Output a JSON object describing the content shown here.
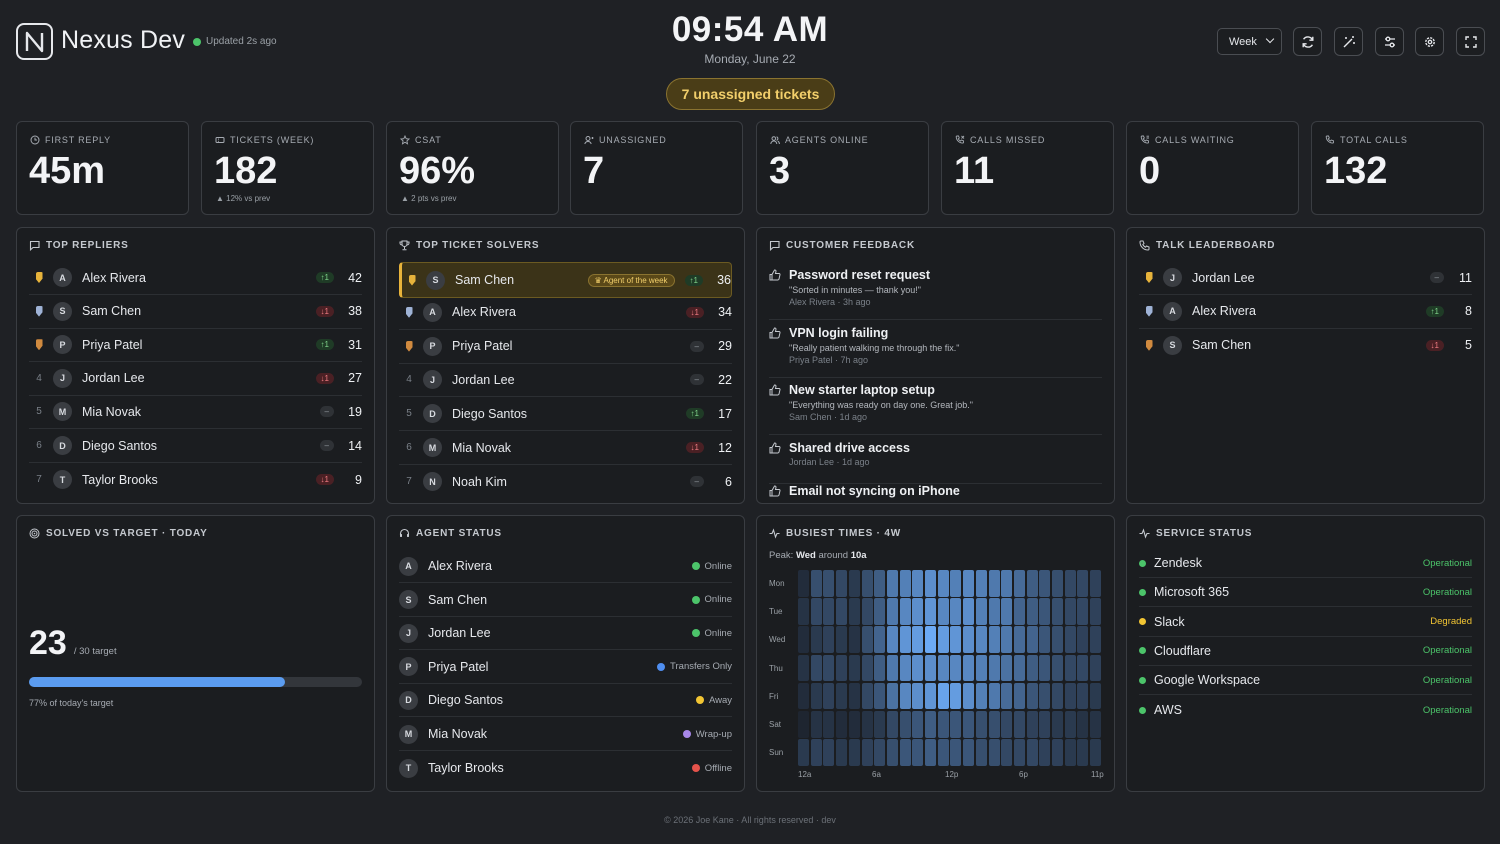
{
  "header": {
    "brand": "Nexus Dev",
    "updated": "Updated 2s ago",
    "time": "09:54 AM",
    "date": "Monday, June 22",
    "unassigned_pill": "7 unassigned tickets",
    "range_select": "Week",
    "icons": [
      "refresh-icon",
      "magic-wand-icon",
      "sliders-icon",
      "gear-icon",
      "fullscreen-icon"
    ]
  },
  "kpis": [
    {
      "label": "FIRST REPLY",
      "value": "45m",
      "sub": "",
      "icon": "clock-icon"
    },
    {
      "label": "TICKETS (WEEK)",
      "value": "182",
      "sub": "▲ 12% vs prev",
      "icon": "ticket-icon"
    },
    {
      "label": "CSAT",
      "value": "96%",
      "sub": "▲ 2 pts vs prev",
      "icon": "star-icon"
    },
    {
      "label": "UNASSIGNED",
      "value": "7",
      "sub": "",
      "icon": "user-icon"
    },
    {
      "label": "AGENTS ONLINE",
      "value": "3",
      "sub": "",
      "icon": "users-icon"
    },
    {
      "label": "CALLS MISSED",
      "value": "11",
      "sub": "",
      "icon": "phone-missed-icon"
    },
    {
      "label": "CALLS WAITING",
      "value": "0",
      "sub": "",
      "icon": "phone-wait-icon"
    },
    {
      "label": "TOTAL CALLS",
      "value": "132",
      "sub": "",
      "icon": "phone-icon"
    }
  ],
  "top_repliers": {
    "title": "TOP REPLIERS",
    "rows": [
      {
        "rank": "1",
        "initial": "A",
        "name": "Alex Rivera",
        "trend": "↑1",
        "dir": "up",
        "count": "42"
      },
      {
        "rank": "2",
        "initial": "S",
        "name": "Sam Chen",
        "trend": "↓1",
        "dir": "down",
        "count": "38"
      },
      {
        "rank": "3",
        "initial": "P",
        "name": "Priya Patel",
        "trend": "↑1",
        "dir": "up",
        "count": "31"
      },
      {
        "rank": "4",
        "initial": "J",
        "name": "Jordan Lee",
        "trend": "↓1",
        "dir": "down",
        "count": "27"
      },
      {
        "rank": "5",
        "initial": "M",
        "name": "Mia Novak",
        "trend": "–",
        "dir": "flat",
        "count": "19"
      },
      {
        "rank": "6",
        "initial": "D",
        "name": "Diego Santos",
        "trend": "–",
        "dir": "flat",
        "count": "14"
      },
      {
        "rank": "7",
        "initial": "T",
        "name": "Taylor Brooks",
        "trend": "↓1",
        "dir": "down",
        "count": "9"
      }
    ]
  },
  "top_solvers": {
    "title": "TOP TICKET SOLVERS",
    "badge": "Agent of the week",
    "rows": [
      {
        "rank": "1",
        "initial": "S",
        "name": "Sam Chen",
        "trend": "↑1",
        "dir": "up",
        "count": "36"
      },
      {
        "rank": "2",
        "initial": "A",
        "name": "Alex Rivera",
        "trend": "↓1",
        "dir": "down",
        "count": "34"
      },
      {
        "rank": "3",
        "initial": "P",
        "name": "Priya Patel",
        "trend": "–",
        "dir": "flat",
        "count": "29"
      },
      {
        "rank": "4",
        "initial": "J",
        "name": "Jordan Lee",
        "trend": "–",
        "dir": "flat",
        "count": "22"
      },
      {
        "rank": "5",
        "initial": "D",
        "name": "Diego Santos",
        "trend": "↑1",
        "dir": "up",
        "count": "17"
      },
      {
        "rank": "6",
        "initial": "M",
        "name": "Mia Novak",
        "trend": "↓1",
        "dir": "down",
        "count": "12"
      },
      {
        "rank": "7",
        "initial": "N",
        "name": "Noah Kim",
        "trend": "–",
        "dir": "flat",
        "count": "6"
      }
    ]
  },
  "feedback": {
    "title": "CUSTOMER FEEDBACK",
    "items": [
      {
        "title": "Password reset request",
        "quote": "\"Sorted in minutes — thank you!\"",
        "meta": "Alex Rivera · 3h ago"
      },
      {
        "title": "VPN login failing",
        "quote": "\"Really patient walking me through the fix.\"",
        "meta": "Priya Patel · 7h ago"
      },
      {
        "title": "New starter laptop setup",
        "quote": "\"Everything was ready on day one. Great job.\"",
        "meta": "Sam Chen · 1d ago"
      },
      {
        "title": "Shared drive access",
        "quote": "",
        "meta": "Jordan Lee · 1d ago"
      },
      {
        "title": "Email not syncing on iPhone",
        "quote": "",
        "meta": ""
      }
    ]
  },
  "talk": {
    "title": "TALK LEADERBOARD",
    "rows": [
      {
        "initial": "J",
        "name": "Jordan Lee",
        "trend": "–",
        "dir": "flat",
        "count": "11"
      },
      {
        "initial": "A",
        "name": "Alex Rivera",
        "trend": "↑1",
        "dir": "up",
        "count": "8"
      },
      {
        "initial": "S",
        "name": "Sam Chen",
        "trend": "↓1",
        "dir": "down",
        "count": "5"
      }
    ]
  },
  "solved": {
    "title": "SOLVED VS TARGET · TODAY",
    "value": "23",
    "target": "/ 30 target",
    "fraction": 0.77,
    "caption": "77% of today's target"
  },
  "agent_status": {
    "title": "AGENT STATUS",
    "rows": [
      {
        "initial": "A",
        "name": "Alex Rivera",
        "status": "Online",
        "color": "#4cc46a"
      },
      {
        "initial": "S",
        "name": "Sam Chen",
        "status": "Online",
        "color": "#4cc46a"
      },
      {
        "initial": "J",
        "name": "Jordan Lee",
        "status": "Online",
        "color": "#4cc46a"
      },
      {
        "initial": "P",
        "name": "Priya Patel",
        "status": "Transfers Only",
        "color": "#4f8ef0"
      },
      {
        "initial": "D",
        "name": "Diego Santos",
        "status": "Away",
        "color": "#f2c533"
      },
      {
        "initial": "M",
        "name": "Mia Novak",
        "status": "Wrap-up",
        "color": "#a787e8"
      },
      {
        "initial": "T",
        "name": "Taylor Brooks",
        "status": "Offline",
        "color": "#e5534b"
      }
    ]
  },
  "busiest": {
    "title": "BUSIEST TIMES · 4W",
    "peak_label": "Peak:",
    "peak_day": "Wed",
    "peak_mid": "around",
    "peak_time": "10a",
    "days": [
      "Mon",
      "Tue",
      "Wed",
      "Thu",
      "Fri",
      "Sat",
      "Sun"
    ],
    "x_labels": [
      "12a",
      "6a",
      "12p",
      "6p",
      "11p"
    ],
    "chart_data": {
      "type": "heatmap",
      "rows": [
        "Mon",
        "Tue",
        "Wed",
        "Thu",
        "Fri",
        "Sat",
        "Sun"
      ],
      "columns": 24,
      "values": [
        [
          0.1,
          0.35,
          0.35,
          0.3,
          0.2,
          0.35,
          0.45,
          0.65,
          0.7,
          0.75,
          0.8,
          0.75,
          0.7,
          0.75,
          0.7,
          0.65,
          0.65,
          0.55,
          0.45,
          0.4,
          0.35,
          0.3,
          0.3,
          0.25
        ],
        [
          0.15,
          0.3,
          0.3,
          0.3,
          0.2,
          0.3,
          0.45,
          0.65,
          0.75,
          0.8,
          0.85,
          0.75,
          0.75,
          0.8,
          0.7,
          0.65,
          0.65,
          0.5,
          0.45,
          0.4,
          0.35,
          0.3,
          0.3,
          0.25
        ],
        [
          0.1,
          0.2,
          0.25,
          0.2,
          0.15,
          0.35,
          0.5,
          0.75,
          0.85,
          0.9,
          1.0,
          0.9,
          0.85,
          0.8,
          0.75,
          0.7,
          0.65,
          0.55,
          0.5,
          0.4,
          0.35,
          0.3,
          0.25,
          0.25
        ],
        [
          0.15,
          0.3,
          0.3,
          0.25,
          0.2,
          0.3,
          0.45,
          0.65,
          0.75,
          0.8,
          0.8,
          0.75,
          0.75,
          0.75,
          0.7,
          0.65,
          0.6,
          0.55,
          0.45,
          0.4,
          0.35,
          0.3,
          0.3,
          0.25
        ],
        [
          0.1,
          0.2,
          0.25,
          0.2,
          0.15,
          0.3,
          0.4,
          0.6,
          0.75,
          0.8,
          0.85,
          0.95,
          0.9,
          0.8,
          0.7,
          0.65,
          0.55,
          0.5,
          0.4,
          0.35,
          0.3,
          0.25,
          0.25,
          0.2
        ],
        [
          0.05,
          0.15,
          0.15,
          0.1,
          0.1,
          0.15,
          0.2,
          0.3,
          0.35,
          0.4,
          0.45,
          0.4,
          0.4,
          0.4,
          0.35,
          0.35,
          0.3,
          0.3,
          0.25,
          0.25,
          0.2,
          0.2,
          0.15,
          0.15
        ],
        [
          0.2,
          0.25,
          0.25,
          0.2,
          0.2,
          0.25,
          0.3,
          0.35,
          0.4,
          0.4,
          0.45,
          0.4,
          0.4,
          0.4,
          0.35,
          0.35,
          0.3,
          0.3,
          0.3,
          0.25,
          0.25,
          0.2,
          0.2,
          0.2
        ]
      ]
    }
  },
  "service_status": {
    "title": "SERVICE STATUS",
    "rows": [
      {
        "name": "Zendesk",
        "status": "Operational",
        "color": "#4cc46a"
      },
      {
        "name": "Microsoft 365",
        "status": "Operational",
        "color": "#4cc46a"
      },
      {
        "name": "Slack",
        "status": "Degraded",
        "color": "#f2c533"
      },
      {
        "name": "Cloudflare",
        "status": "Operational",
        "color": "#4cc46a"
      },
      {
        "name": "Google Workspace",
        "status": "Operational",
        "color": "#4cc46a"
      },
      {
        "name": "AWS",
        "status": "Operational",
        "color": "#4cc46a"
      }
    ]
  },
  "footer": "© 2026 Joe Kane · All rights reserved · dev"
}
